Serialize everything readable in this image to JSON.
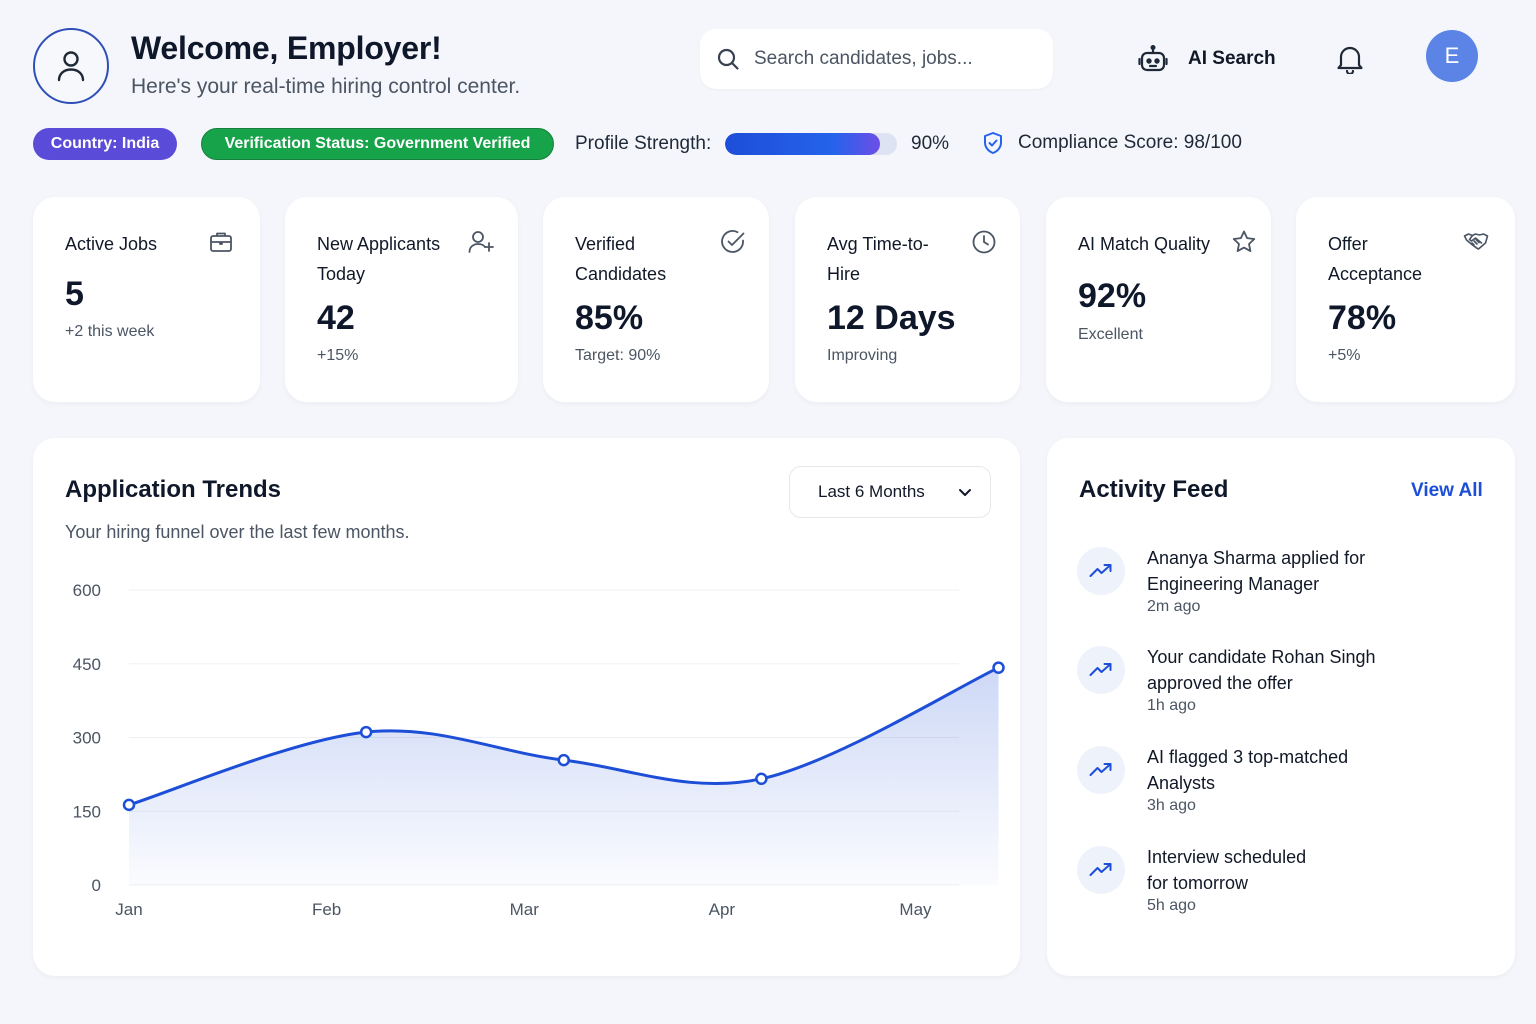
{
  "header": {
    "title": "Welcome, Employer!",
    "subtitle": "Here's your real-time hiring control center.",
    "search_placeholder": "Search candidates, jobs...",
    "ai_search_label": "AI Search",
    "user_initial": "E"
  },
  "status_bar": {
    "country": "Country: India",
    "verification": "Verification Status: Government Verified",
    "profile_strength_label": "Profile Strength:",
    "profile_strength_value": "90%",
    "profile_strength_fraction": 0.9,
    "compliance": "Compliance Score: 98/100"
  },
  "stats": [
    {
      "label": "Active Jobs",
      "value": "5",
      "sub": "+2 this week",
      "icon": "briefcase-icon"
    },
    {
      "label": "New Applicants Today",
      "value": "42",
      "sub": "+15%",
      "icon": "user-plus-icon"
    },
    {
      "label": "Verified Candidates",
      "value": "85%",
      "sub": "Target: 90%",
      "icon": "check-circle-icon"
    },
    {
      "label": "Avg Time-to-Hire",
      "value": "12 Days",
      "sub": "Improving",
      "icon": "clock-icon"
    },
    {
      "label": "AI Match Quality",
      "value": "92%",
      "sub": "Excellent",
      "icon": "star-icon"
    },
    {
      "label": "Offer Acceptance",
      "value": "78%",
      "sub": "+5%",
      "icon": "handshake-icon"
    }
  ],
  "trends": {
    "title": "Application Trends",
    "subtitle": "Your hiring funnel over the last few months.",
    "range_label": "Last 6 Months"
  },
  "chart_data": {
    "type": "area",
    "categories": [
      "Jan",
      "Feb",
      "Mar",
      "Apr",
      "May"
    ],
    "x": [
      0,
      1.2,
      2.2,
      3.2,
      4.4
    ],
    "x_tick_positions": [
      0,
      1,
      2,
      3,
      4
    ],
    "values": [
      163,
      311,
      254,
      216,
      442
    ],
    "y_ticks": [
      0,
      150,
      300,
      450,
      600
    ],
    "ylim": [
      0,
      600
    ],
    "grid": true,
    "color": "#1d4ed8"
  },
  "activity": {
    "title": "Activity Feed",
    "view_all": "View All",
    "items": [
      {
        "line1": "Ananya Sharma applied for",
        "line2": "Engineering Manager",
        "time": "2m ago"
      },
      {
        "line1": "Your candidate Rohan Singh",
        "line2": "approved the offer",
        "time": "1h ago"
      },
      {
        "line1": "AI flagged 3 top-matched",
        "line2": "Analysts",
        "time": "3h ago"
      },
      {
        "line1": "Interview scheduled",
        "line2": "for tomorrow",
        "time": "5h ago"
      }
    ]
  },
  "colors": {
    "accent": "#1d4ed8",
    "country_badge": "#5b4bd9",
    "verified_badge": "#16a34a",
    "avatar": "#5b84e6"
  }
}
